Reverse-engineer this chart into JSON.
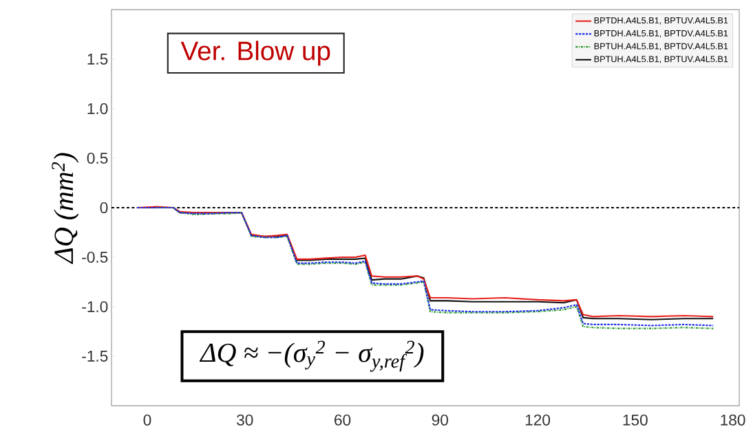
{
  "chart_data": {
    "type": "line",
    "ylabel": "ΔQ (mm$^{2}$)",
    "x": [
      -3,
      3,
      8,
      10,
      15,
      20,
      25,
      29,
      32,
      36,
      40,
      43,
      46,
      50,
      55,
      60,
      64,
      67,
      69,
      73,
      78,
      83,
      85,
      87,
      92,
      100,
      110,
      120,
      128,
      132,
      134,
      137,
      145,
      155,
      165,
      174
    ],
    "series": [
      {
        "name": "BPTDH.A4L5.B1, BPTUV.A4L5.B1",
        "color": "#e8221e",
        "line_style": "solid",
        "values": [
          0,
          0.01,
          0,
          -0.04,
          -0.05,
          -0.05,
          -0.05,
          -0.05,
          -0.27,
          -0.29,
          -0.28,
          -0.27,
          -0.52,
          -0.52,
          -0.51,
          -0.5,
          -0.5,
          -0.48,
          -0.69,
          -0.7,
          -0.7,
          -0.69,
          -0.72,
          -0.91,
          -0.91,
          -0.92,
          -0.91,
          -0.93,
          -0.94,
          -0.93,
          -1.08,
          -1.1,
          -1.09,
          -1.1,
          -1.09,
          -1.1
        ]
      },
      {
        "name": "BPTDH.A4L5.B1, BPTDV.A4L5.B1",
        "color": "#1e2ee8",
        "line_style": "dashed",
        "values": [
          0,
          0,
          0,
          -0.05,
          -0.06,
          -0.06,
          -0.05,
          -0.05,
          -0.28,
          -0.3,
          -0.3,
          -0.28,
          -0.56,
          -0.56,
          -0.55,
          -0.55,
          -0.56,
          -0.54,
          -0.76,
          -0.77,
          -0.77,
          -0.75,
          -0.74,
          -1.03,
          -1.04,
          -1.05,
          -1.05,
          -1.04,
          -1.01,
          -0.98,
          -1.17,
          -1.18,
          -1.18,
          -1.19,
          -1.18,
          -1.19
        ]
      },
      {
        "name": "BPTUH.A4L5.B1, BPTDV.A4L5.B1",
        "color": "#2a9a2a",
        "line_style": "dashdot",
        "values": [
          null,
          0,
          0,
          -0.05,
          -0.07,
          -0.06,
          -0.06,
          -0.05,
          -0.29,
          -0.3,
          -0.3,
          -0.29,
          -0.57,
          -0.57,
          -0.56,
          -0.56,
          -0.57,
          -0.55,
          -0.78,
          -0.78,
          -0.78,
          -0.76,
          -0.75,
          -1.05,
          -1.06,
          -1.06,
          -1.06,
          -1.05,
          -1.03,
          -1.0,
          -1.2,
          -1.21,
          -1.22,
          -1.22,
          -1.21,
          -1.22
        ]
      },
      {
        "name": "BPTUH.A4L5.B1, BPTUV.A4L5.B1",
        "color": "#111111",
        "line_style": "solid",
        "values": [
          0,
          0,
          0,
          -0.05,
          -0.05,
          -0.05,
          -0.05,
          -0.05,
          -0.28,
          -0.29,
          -0.29,
          -0.28,
          -0.53,
          -0.53,
          -0.52,
          -0.52,
          -0.52,
          -0.51,
          -0.73,
          -0.72,
          -0.72,
          -0.69,
          -0.71,
          -0.94,
          -0.94,
          -0.95,
          -0.95,
          -0.95,
          -0.96,
          -0.93,
          -1.11,
          -1.12,
          -1.12,
          -1.13,
          -1.12,
          -1.12
        ]
      }
    ],
    "xlim": [
      -11,
      182
    ],
    "xticks": [
      0,
      30,
      60,
      90,
      120,
      150,
      180
    ],
    "ylim": [
      -2,
      2
    ],
    "yticks": [
      {
        "value": -1.5,
        "label": "-1.5"
      },
      {
        "value": -1,
        "label": "-1.0"
      },
      {
        "value": -0.5,
        "label": "-0.5"
      },
      0,
      {
        "value": 0.5,
        "label": "0.5"
      },
      {
        "value": 1,
        "label": "1.0"
      },
      {
        "value": 1.5,
        "label": "1.5"
      }
    ],
    "ref_lines": [
      {
        "axis": "y",
        "value": 0,
        "color": "#000000",
        "line_style": "dashed"
      }
    ],
    "legend": "top right",
    "annotations": [
      "Ver. Blow up",
      "ΔQ ≈ −(σ$_{y}$$^{2}$ − σ$_{y,ref}$$^{2}$)"
    ]
  }
}
